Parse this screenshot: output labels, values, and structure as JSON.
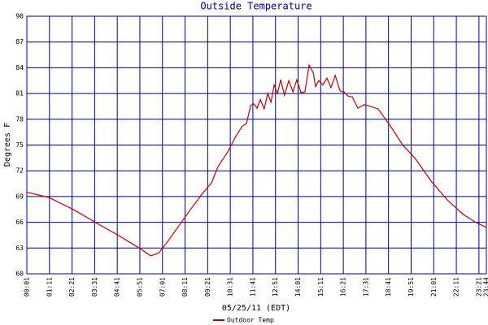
{
  "chart_data": {
    "type": "line",
    "title": "Outside Temperature",
    "y_label": "Degrees F",
    "x_label": "05/25/11 (EDT)",
    "grid": true,
    "grid_color": "#00008b",
    "legend": "bottom",
    "xlim": [
      1,
      1424
    ],
    "xticks": [
      {
        "value": 1,
        "label": "00:01"
      },
      {
        "value": 71,
        "label": "01:11"
      },
      {
        "value": 141,
        "label": "02:21"
      },
      {
        "value": 211,
        "label": "03:31"
      },
      {
        "value": 281,
        "label": "04:41"
      },
      {
        "value": 351,
        "label": "05:51"
      },
      {
        "value": 421,
        "label": "07:01"
      },
      {
        "value": 491,
        "label": "08:11"
      },
      {
        "value": 561,
        "label": "09:21"
      },
      {
        "value": 631,
        "label": "10:31"
      },
      {
        "value": 701,
        "label": "11:41"
      },
      {
        "value": 771,
        "label": "12:51"
      },
      {
        "value": 841,
        "label": "14:01"
      },
      {
        "value": 911,
        "label": "15:11"
      },
      {
        "value": 981,
        "label": "16:21"
      },
      {
        "value": 1051,
        "label": "17:31"
      },
      {
        "value": 1121,
        "label": "18:41"
      },
      {
        "value": 1191,
        "label": "19:51"
      },
      {
        "value": 1261,
        "label": "21:01"
      },
      {
        "value": 1331,
        "label": "22:11"
      },
      {
        "value": 1401,
        "label": "23:21"
      },
      {
        "value": 1424,
        "label": "23:44"
      }
    ],
    "ylim": [
      60,
      90
    ],
    "yticks": [
      60,
      63,
      66,
      69,
      72,
      75,
      78,
      81,
      84,
      87,
      90
    ],
    "x": [
      1,
      69,
      145,
      213,
      283,
      349,
      384,
      409,
      434,
      472,
      510,
      548,
      573,
      593,
      623,
      648,
      668,
      681,
      694,
      704,
      714,
      724,
      736,
      747,
      757,
      767,
      777,
      787,
      799,
      812,
      825,
      837,
      850,
      862,
      875,
      888,
      895,
      905,
      918,
      930,
      943,
      956,
      971,
      983,
      996,
      1009,
      1026,
      1046,
      1064,
      1089,
      1127,
      1165,
      1202,
      1253,
      1303,
      1353,
      1391,
      1424
    ],
    "series": [
      {
        "name": "Outdoor Temp",
        "color": "#c00000",
        "values": [
          69.5,
          68.9,
          67.5,
          66.0,
          64.5,
          63.0,
          62.1,
          62.4,
          63.6,
          65.6,
          67.6,
          69.5,
          70.6,
          72.5,
          74.2,
          76.0,
          77.2,
          77.5,
          79.6,
          79.8,
          79.3,
          80.3,
          79.2,
          81.0,
          80.0,
          82.0,
          81.0,
          82.6,
          80.8,
          82.5,
          81.2,
          82.6,
          81.1,
          81.2,
          84.3,
          83.4,
          81.8,
          82.5,
          82.0,
          82.8,
          81.7,
          83.1,
          81.3,
          81.2,
          80.7,
          80.6,
          79.3,
          79.7,
          79.5,
          79.2,
          77.2,
          75.0,
          73.5,
          70.8,
          68.6,
          66.9,
          66.0,
          65.4
        ]
      }
    ]
  }
}
